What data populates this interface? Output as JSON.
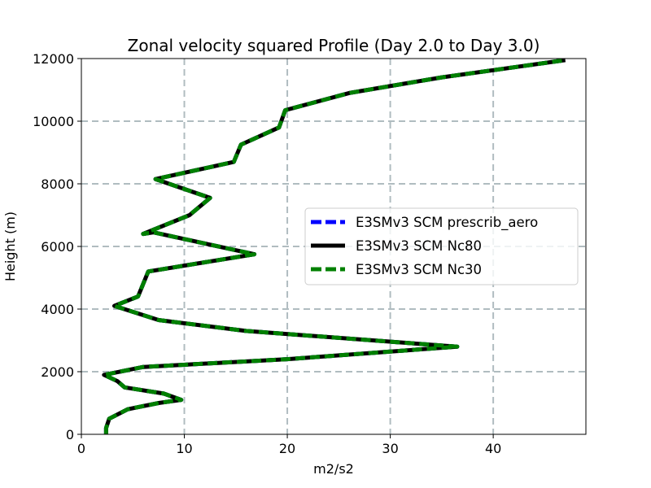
{
  "chart_data": {
    "type": "line",
    "title": "Zonal velocity squared Profile (Day 2.0 to Day 3.0)",
    "xlabel": "m2/s2",
    "ylabel": "Height (m)",
    "xlim": [
      0,
      49
    ],
    "ylim": [
      0,
      12000
    ],
    "xticks": [
      0,
      10,
      20,
      30,
      40
    ],
    "yticks": [
      0,
      2000,
      4000,
      6000,
      8000,
      10000,
      12000
    ],
    "xtick_labels": [
      "0",
      "10",
      "20",
      "30",
      "40"
    ],
    "ytick_labels": [
      "0",
      "2000",
      "4000",
      "6000",
      "8000",
      "10000",
      "12000"
    ],
    "grid": true,
    "legend_position": "center-right",
    "series": [
      {
        "name": "E3SMv3 SCM prescrib_aero",
        "color": "#0000ff",
        "style": "dashed",
        "u2": [
          2.4,
          2.4,
          2.7,
          4.5,
          7.5,
          9.7,
          8.0,
          4.2,
          3.5,
          2.2,
          6.0,
          20.0,
          36.5,
          16.0,
          7.5,
          3.2,
          5.5,
          6.5,
          16.8,
          7.0,
          6.0,
          10.5,
          12.5,
          7.2,
          14.8,
          15.5,
          19.2,
          19.8,
          26.0,
          35.0,
          47.0
        ],
        "z": [
          0,
          200,
          500,
          800,
          1000,
          1100,
          1300,
          1500,
          1700,
          1900,
          2150,
          2400,
          2800,
          3300,
          3650,
          4100,
          4400,
          5200,
          5750,
          6450,
          6400,
          7000,
          7550,
          8150,
          8700,
          9250,
          9800,
          10350,
          10900,
          11400,
          11950
        ]
      },
      {
        "name": "E3SMv3 SCM Nc80",
        "color": "#000000",
        "style": "solid",
        "u2": [
          2.4,
          2.4,
          2.7,
          4.5,
          7.5,
          9.7,
          8.0,
          4.2,
          3.5,
          2.2,
          6.0,
          20.0,
          36.5,
          16.0,
          7.5,
          3.2,
          5.5,
          6.5,
          16.8,
          7.0,
          6.0,
          10.5,
          12.5,
          7.2,
          14.8,
          15.5,
          19.2,
          19.8,
          26.0,
          35.0,
          47.0
        ],
        "z": [
          0,
          200,
          500,
          800,
          1000,
          1100,
          1300,
          1500,
          1700,
          1900,
          2150,
          2400,
          2800,
          3300,
          3650,
          4100,
          4400,
          5200,
          5750,
          6450,
          6400,
          7000,
          7550,
          8150,
          8700,
          9250,
          9800,
          10350,
          10900,
          11400,
          11950
        ]
      },
      {
        "name": "E3SMv3 SCM Nc30",
        "color": "#008000",
        "style": "dashed",
        "u2": [
          2.4,
          2.4,
          2.7,
          4.5,
          7.5,
          9.7,
          8.0,
          4.2,
          3.5,
          2.2,
          6.0,
          20.0,
          36.5,
          16.0,
          7.5,
          3.2,
          5.5,
          6.5,
          16.8,
          7.0,
          6.0,
          10.5,
          12.5,
          7.2,
          14.8,
          15.5,
          19.2,
          19.8,
          26.0,
          35.0,
          47.0
        ],
        "z": [
          0,
          200,
          500,
          800,
          1000,
          1100,
          1300,
          1500,
          1700,
          1900,
          2150,
          2400,
          2800,
          3300,
          3650,
          4100,
          4400,
          5200,
          5750,
          6450,
          6400,
          7000,
          7550,
          8150,
          8700,
          9250,
          9800,
          10350,
          10900,
          11400,
          11950
        ]
      }
    ]
  }
}
